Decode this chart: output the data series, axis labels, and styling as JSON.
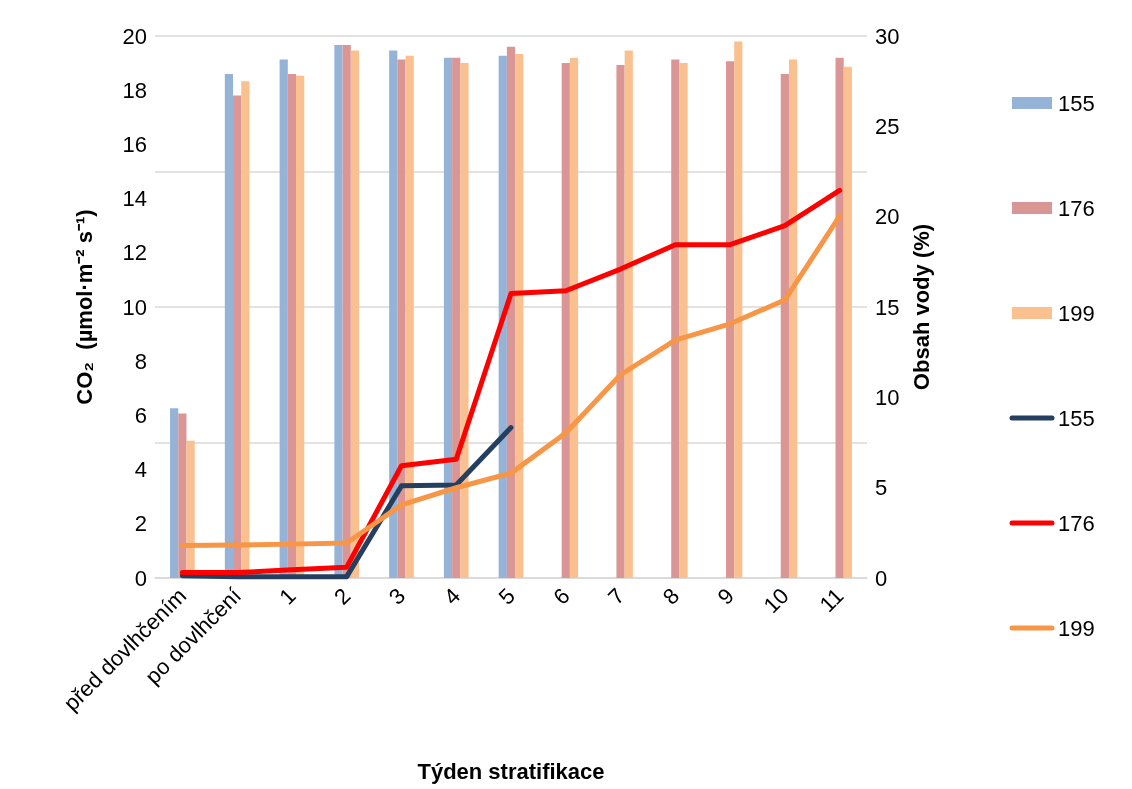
{
  "chart_data": {
    "type": "bar",
    "categories": [
      "před dovlhčením",
      "po dovlhčení",
      "1",
      "2",
      "3",
      "4",
      "5",
      "6",
      "7",
      "8",
      "9",
      "10",
      "11"
    ],
    "xlabel": "Týden stratifikace",
    "ylabel": "CO₂  (µmol·m⁻² s⁻¹)",
    "y2label": "Obsah vody (%)",
    "series": [
      {
        "name": "155",
        "axis": "y2",
        "color": "#95b3d7",
        "values": [
          9.4,
          27.9,
          28.7,
          29.5,
          29.2,
          28.8,
          28.9,
          null,
          null,
          null,
          null,
          null,
          null
        ]
      },
      {
        "name": "176",
        "axis": "y2",
        "color": "#d99694",
        "values": [
          9.1,
          26.7,
          27.9,
          29.5,
          28.7,
          28.8,
          29.4,
          28.5,
          28.4,
          28.7,
          28.6,
          27.9,
          28.8
        ]
      },
      {
        "name": "199",
        "axis": "y2",
        "color": "#fac090",
        "values": [
          7.6,
          27.5,
          27.8,
          29.2,
          28.9,
          28.5,
          29.0,
          28.8,
          29.2,
          28.5,
          29.7,
          28.7,
          28.3
        ]
      },
      {
        "name": "155",
        "type": "line",
        "color": "#243f60",
        "values": [
          0.08,
          0.05,
          0.05,
          0.05,
          3.4,
          3.43,
          5.55,
          null,
          null,
          null,
          null,
          null,
          null
        ]
      },
      {
        "name": "176",
        "type": "line",
        "color": "#ff0000",
        "values": [
          0.2,
          0.2,
          0.3,
          0.4,
          4.14,
          4.38,
          10.5,
          10.6,
          11.4,
          12.3,
          12.3,
          13.0,
          14.3
        ]
      },
      {
        "name": "199",
        "type": "line",
        "color": "#f79646",
        "values": [
          1.2,
          1.22,
          1.25,
          1.29,
          2.7,
          3.33,
          3.87,
          5.35,
          7.5,
          8.78,
          9.38,
          10.26,
          13.35
        ]
      }
    ],
    "ylim": [
      0,
      20
    ],
    "yticks": [
      0,
      2,
      4,
      6,
      8,
      10,
      12,
      14,
      16,
      18,
      20
    ],
    "y2lim": [
      0,
      30
    ],
    "y2ticks": [
      0,
      5,
      10,
      15,
      20,
      25,
      30
    ],
    "grid": "y",
    "legend": "right",
    "marker": "none",
    "line_style": "solid"
  }
}
